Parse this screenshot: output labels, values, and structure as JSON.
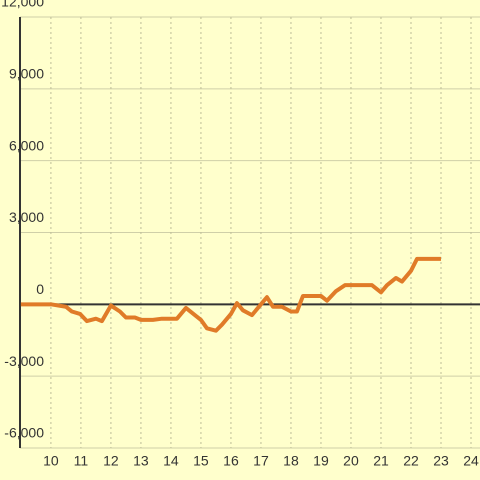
{
  "chart_data": {
    "type": "line",
    "x": [
      9.0,
      10.0,
      10.5,
      10.7,
      10.97,
      11.2,
      11.5,
      11.7,
      12.0,
      12.3,
      12.5,
      12.8,
      13.0,
      13.4,
      13.7,
      14.2,
      14.5,
      15.0,
      15.2,
      15.5,
      15.7,
      16.0,
      16.2,
      16.4,
      16.7,
      17.0,
      17.2,
      17.4,
      17.7,
      18.0,
      18.2,
      18.4,
      19.0,
      19.2,
      19.5,
      19.8,
      20.7,
      21.0,
      21.2,
      21.5,
      21.7,
      22.0,
      22.2,
      23.0
    ],
    "series": [
      {
        "color": "#e07b28",
        "values": [
          0,
          0,
          -100,
          -300,
          -400,
          -700,
          -600,
          -700,
          -50,
          -300,
          -550,
          -550,
          -650,
          -650,
          -600,
          -600,
          -150,
          -650,
          -1000,
          -1100,
          -850,
          -400,
          50,
          -250,
          -450,
          0,
          300,
          -100,
          -100,
          -300,
          -300,
          350,
          350,
          150,
          550,
          800,
          800,
          500,
          800,
          1100,
          950,
          1400,
          1900,
          1900
        ]
      }
    ],
    "xlim": [
      8.97,
      24.3
    ],
    "xticks": [
      10,
      11,
      12,
      13,
      14,
      15,
      16,
      17,
      18,
      19,
      20,
      21,
      22,
      23,
      24
    ],
    "ylim": [
      -6000,
      12000
    ],
    "yticks": [
      {
        "value": -6000,
        "label": "-6,000"
      },
      {
        "value": -3000,
        "label": "-3,000"
      },
      0,
      {
        "value": 3000,
        "label": "3,000"
      },
      {
        "value": 6000,
        "label": "6,000"
      },
      {
        "value": 9000,
        "label": "9,000"
      },
      {
        "value": 12000,
        "label": "12,000"
      }
    ],
    "grid": true
  }
}
